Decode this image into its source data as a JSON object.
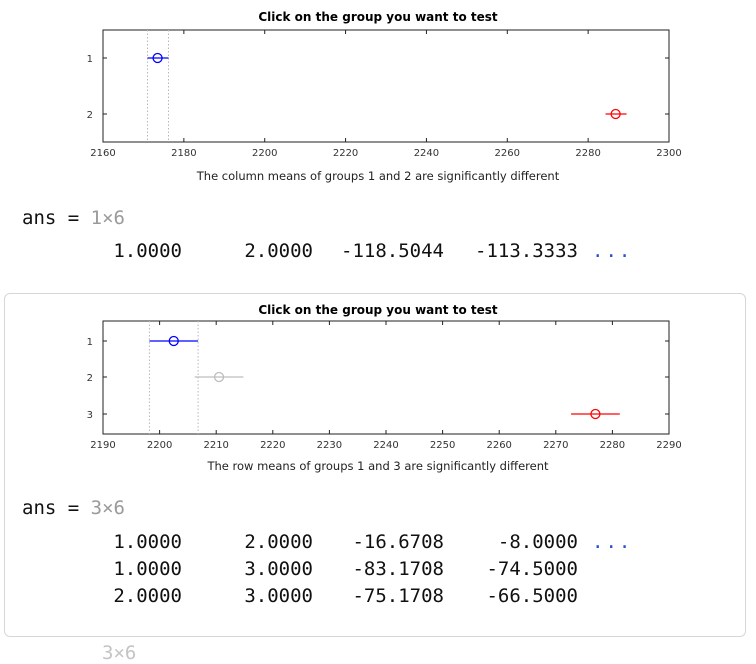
{
  "chart_data": [
    {
      "type": "scatter",
      "title": "Click on the group you want to test",
      "xlabel": "The column means of groups 1 and 2 are significantly different",
      "ylabel": "",
      "xlim": [
        2160,
        2300
      ],
      "x_ticks": [
        "2160",
        "2180",
        "2200",
        "2220",
        "2240",
        "2260",
        "2280",
        "2300"
      ],
      "y_ticks": [
        "1",
        "2"
      ],
      "series": [
        {
          "group": "1",
          "mean": 2173.5,
          "lower": 2171.0,
          "upper": 2176.2,
          "color": "#0000ff"
        },
        {
          "group": "2",
          "mean": 2286.8,
          "lower": 2284.3,
          "upper": 2289.5,
          "color": "#ff0000"
        }
      ],
      "reference_lines": [
        2171.0,
        2176.2
      ],
      "grid": false
    },
    {
      "type": "scatter",
      "title": "Click on the group you want to test",
      "xlabel": "The row means of groups 1 and 3 are significantly different",
      "ylabel": "",
      "xlim": [
        2190,
        2290
      ],
      "x_ticks": [
        "2190",
        "2200",
        "2210",
        "2220",
        "2230",
        "2240",
        "2250",
        "2260",
        "2270",
        "2280",
        "2290"
      ],
      "y_ticks": [
        "1",
        "2",
        "3"
      ],
      "series": [
        {
          "group": "1",
          "mean": 2202.5,
          "lower": 2198.2,
          "upper": 2206.8,
          "color": "#0000ff"
        },
        {
          "group": "2",
          "mean": 2210.5,
          "lower": 2206.2,
          "upper": 2214.8,
          "color": "#bdbdbd"
        },
        {
          "group": "3",
          "mean": 2277.0,
          "lower": 2272.7,
          "upper": 2281.3,
          "color": "#ff0000"
        }
      ],
      "reference_lines": [
        2198.2,
        2206.8
      ],
      "grid": false
    }
  ],
  "console": {
    "ans1": {
      "label": "ans = ",
      "dims": "1×6",
      "rows": [
        [
          "1.0000",
          "2.0000",
          "-118.5044",
          "-113.3333"
        ]
      ],
      "ellipsis": "..."
    },
    "ans2": {
      "label": "ans = ",
      "dims": "3×6",
      "rows": [
        [
          "1.0000",
          "2.0000",
          "-16.6708",
          "-8.0000"
        ],
        [
          "1.0000",
          "3.0000",
          "-83.1708",
          "-74.5000"
        ],
        [
          "2.0000",
          "3.0000",
          "-75.1708",
          "-66.5000"
        ]
      ],
      "ellipsis": "..."
    },
    "cutoff_dims": "3×6"
  }
}
